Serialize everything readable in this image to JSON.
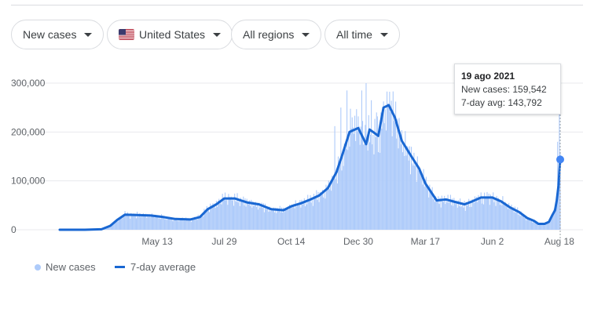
{
  "filters": {
    "metric": "New cases",
    "location": "United States",
    "region": "All regions",
    "time": "All time"
  },
  "icons": {
    "flag": "us-flag-icon",
    "dropdown": "caret-down-icon"
  },
  "colors": {
    "bars": "#aecbfa",
    "line": "#1967d2",
    "axis_text": "#5f6368"
  },
  "tooltip": {
    "date": "19 ago 2021",
    "new_cases_text": "New cases: 159,542",
    "avg_text": "7-day avg: 143,792"
  },
  "legend": {
    "bars_label": "New cases",
    "line_label": "7-day average"
  },
  "chart_data": {
    "type": "bar",
    "title": "",
    "xlabel": "",
    "ylabel": "",
    "x_ticks": [
      "May 13",
      "Jul 29",
      "Oct 14",
      "Dec 30",
      "Mar 17",
      "Jun 2",
      "Aug 18"
    ],
    "y_ticks": [
      "0",
      "100,000",
      "200,000",
      "300,000"
    ],
    "ylim": [
      0,
      300000
    ],
    "grid": true,
    "x_range": [
      "Jan 22",
      "Aug 19"
    ],
    "series": [
      {
        "name": "7-day average",
        "type": "line",
        "points": [
          [
            "Jan 22",
            0
          ],
          [
            "Feb 20",
            0
          ],
          [
            "Mar 10",
            1000
          ],
          [
            "Mar 20",
            8000
          ],
          [
            "Mar 28",
            20000
          ],
          [
            "Apr 6",
            31000
          ],
          [
            "Apr 20",
            30000
          ],
          [
            "May 6",
            29000
          ],
          [
            "May 20",
            26000
          ],
          [
            "Jun 3",
            22000
          ],
          [
            "Jun 20",
            21000
          ],
          [
            "Jul 1",
            26000
          ],
          [
            "Jul 10",
            42000
          ],
          [
            "Jul 20",
            52000
          ],
          [
            "Jul 29",
            64000
          ],
          [
            "Aug 10",
            64000
          ],
          [
            "Aug 24",
            56000
          ],
          [
            "Sep 7",
            52000
          ],
          [
            "Sep 21",
            42000
          ],
          [
            "Oct 5",
            40000
          ],
          [
            "Oct 14",
            48000
          ],
          [
            "Oct 25",
            54000
          ],
          [
            "Nov 5",
            62000
          ],
          [
            "Nov 15",
            70000
          ],
          [
            "Nov 25",
            85000
          ],
          [
            "Dec 5",
            118000
          ],
          [
            "Dec 12",
            155000
          ],
          [
            "Dec 20",
            200000
          ],
          [
            "Dec 30",
            208000
          ],
          [
            "Jan 8",
            175000
          ],
          [
            "Jan 12",
            205000
          ],
          [
            "Jan 16",
            200000
          ],
          [
            "Jan 22",
            192000
          ],
          [
            "Jan 28",
            250000
          ],
          [
            "Feb 3",
            255000
          ],
          [
            "Feb 10",
            230000
          ],
          [
            "Feb 18",
            182000
          ],
          [
            "Mar 1",
            150000
          ],
          [
            "Mar 10",
            125000
          ],
          [
            "Mar 17",
            95000
          ],
          [
            "Mar 30",
            60000
          ],
          [
            "Apr 10",
            62000
          ],
          [
            "Apr 20",
            57000
          ],
          [
            "May 1",
            52000
          ],
          [
            "May 10",
            58000
          ],
          [
            "May 20",
            66000
          ],
          [
            "Jun 2",
            66000
          ],
          [
            "Jun 12",
            58000
          ],
          [
            "Jun 22",
            46000
          ],
          [
            "Jul 3",
            36000
          ],
          [
            "Jul 12",
            24000
          ],
          [
            "Jul 20",
            18000
          ],
          [
            "Jul 25",
            12000
          ],
          [
            "Aug 1",
            12000
          ],
          [
            "Aug 6",
            16000
          ],
          [
            "Aug 10",
            30000
          ],
          [
            "Aug 13",
            40000
          ],
          [
            "Aug 15",
            60000
          ],
          [
            "Aug 17",
            90000
          ],
          [
            "Aug 18",
            118000
          ],
          [
            "Aug 19",
            143792
          ]
        ]
      },
      {
        "name": "New cases",
        "type": "bar",
        "spikes": [
          [
            "Dec 3",
            212000
          ],
          [
            "Dec 10",
            250000
          ],
          [
            "Dec 17",
            285000
          ],
          [
            "Dec 23",
            230000
          ],
          [
            "Dec 30",
            232000
          ],
          [
            "Jan 3",
            285000
          ],
          [
            "Jan 8",
            300000
          ],
          [
            "Jan 14",
            265000
          ],
          [
            "Jan 20",
            240000
          ],
          [
            "Aug 16",
            180000
          ],
          [
            "Aug 18",
            240000
          ],
          [
            "Aug 19",
            159542
          ]
        ]
      }
    ]
  }
}
